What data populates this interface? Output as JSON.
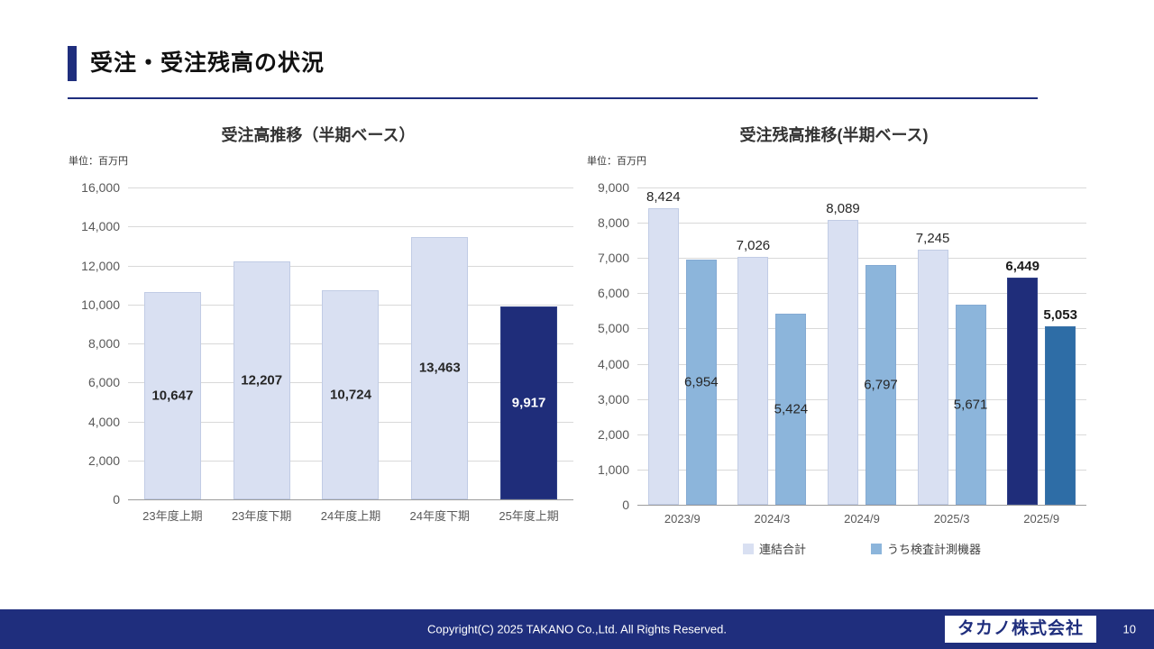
{
  "page": {
    "title": "受注・受注残高の状況",
    "page_number": "10",
    "footer_copyright": "Copyright(C) 2025 TAKANO Co.,Ltd. All Rights Reserved.",
    "footer_logo": "タカノ株式会社"
  },
  "theme": {
    "navy": "#1f2e7d",
    "light_bar": "#d9e0f2",
    "medium_blue_bar": "#8cb5db",
    "dark_navy_bar": "#1f2d7a",
    "dark_blue_bar": "#2e6da6",
    "gridline": "#d9d9d9"
  },
  "chart_data": [
    {
      "type": "bar",
      "title": "受注高推移（半期ベース）",
      "unit_label": "単位：百万円",
      "categories": [
        "23年度上期",
        "23年度下期",
        "24年度上期",
        "24年度下期",
        "25年度上期"
      ],
      "values": [
        10647,
        12207,
        10724,
        13463,
        9917
      ],
      "labels": [
        "10,647",
        "12,207",
        "10,724",
        "13,463",
        "9,917"
      ],
      "ylim": [
        0,
        16000
      ],
      "ytick_step": 2000,
      "yticks": [
        "16,000",
        "14,000",
        "12,000",
        "10,000",
        "8,000",
        "6,000",
        "4,000",
        "2,000",
        "0"
      ],
      "grid": true,
      "legend_position": "none",
      "bar_colors": [
        "#d9e0f2",
        "#d9e0f2",
        "#d9e0f2",
        "#d9e0f2",
        "#1f2d7a"
      ],
      "label_colors": [
        "#262626",
        "#262626",
        "#262626",
        "#262626",
        "#ffffff"
      ],
      "label_pos": [
        "middle",
        "middle",
        "middle",
        "middle",
        "middle"
      ],
      "label_bold": [
        true,
        true,
        true,
        true,
        true
      ]
    },
    {
      "type": "bar",
      "title": "受注残高推移(半期ベース)",
      "unit_label": "単位：百万円",
      "categories": [
        "2023/9",
        "2024/3",
        "2024/9",
        "2025/3",
        "2025/9"
      ],
      "series": [
        {
          "name": "連結合計",
          "values": [
            8424,
            7026,
            8089,
            7245,
            6449
          ],
          "labels": [
            "8,424",
            "7,026",
            "8,089",
            "7,245",
            "6,449"
          ],
          "colors": [
            "#d9e0f2",
            "#d9e0f2",
            "#d9e0f2",
            "#d9e0f2",
            "#1f2d7a"
          ],
          "label_colors": [
            "#262626",
            "#262626",
            "#262626",
            "#262626",
            "#1a1a1a"
          ],
          "label_pos": [
            "above",
            "above",
            "above",
            "above",
            "above"
          ],
          "label_bold": [
            false,
            false,
            false,
            false,
            true
          ]
        },
        {
          "name": "うち検査計測機器",
          "values": [
            6954,
            5424,
            6797,
            5671,
            5053
          ],
          "labels": [
            "6,954",
            "5,424",
            "6,797",
            "5,671",
            "5,053"
          ],
          "colors": [
            "#8cb5db",
            "#8cb5db",
            "#8cb5db",
            "#8cb5db",
            "#2e6da6"
          ],
          "label_colors": [
            "#262626",
            "#262626",
            "#262626",
            "#262626",
            "#1a1a1a"
          ],
          "label_pos": [
            "middle",
            "middle",
            "middle",
            "middle",
            "above"
          ],
          "label_bold": [
            false,
            false,
            false,
            false,
            true
          ]
        }
      ],
      "ylim": [
        0,
        9000
      ],
      "ytick_step": 1000,
      "yticks": [
        "9,000",
        "8,000",
        "7,000",
        "6,000",
        "5,000",
        "4,000",
        "3,000",
        "2,000",
        "1,000",
        "0"
      ],
      "grid": true,
      "legend_position": "bottom",
      "legend": [
        {
          "label": "連結合計",
          "color": "#d9e0f2"
        },
        {
          "label": "うち検査計測機器",
          "color": "#8cb5db"
        }
      ]
    }
  ]
}
